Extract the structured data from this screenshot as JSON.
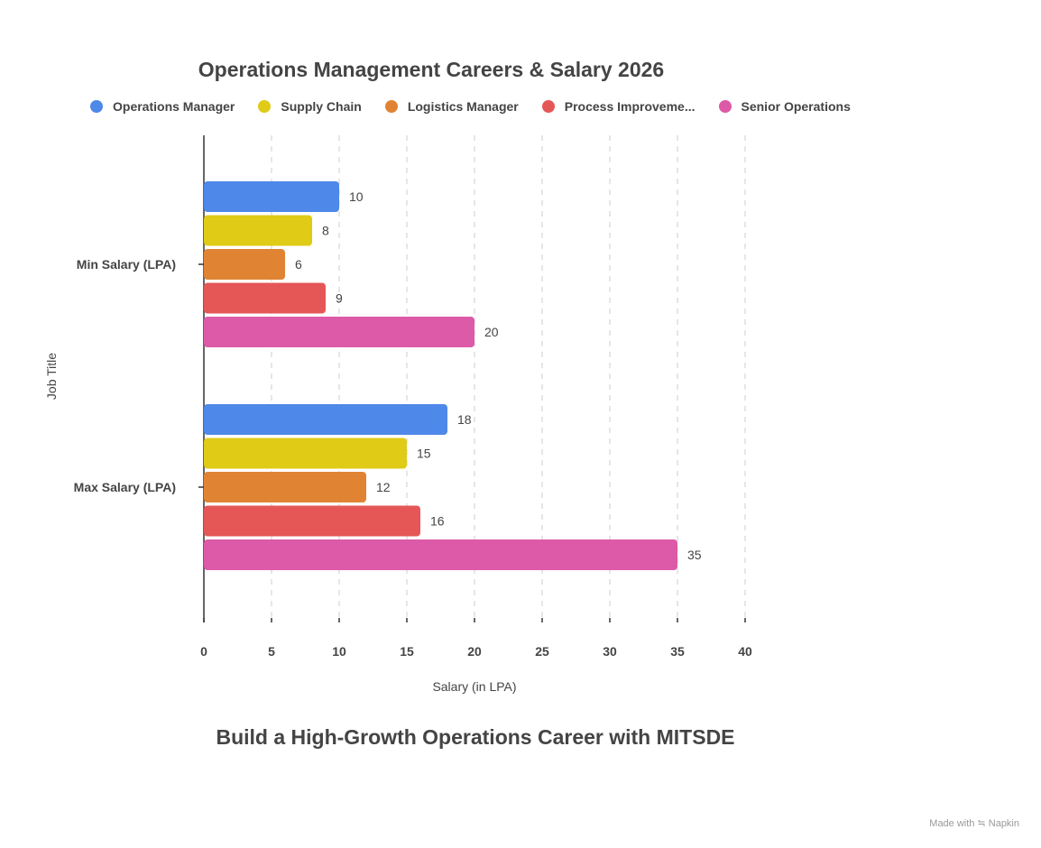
{
  "chart_data": {
    "type": "bar",
    "orientation": "horizontal",
    "title": "Operations Management Careers & Salary 2026",
    "subtitle": "Build a High-Growth Operations Career with MITSDE",
    "xlabel": "Salary (in LPA)",
    "ylabel": "Job Title",
    "xlim": [
      0,
      40
    ],
    "xticks": [
      0,
      5,
      10,
      15,
      20,
      25,
      30,
      35,
      40
    ],
    "grid": "vertical dashed",
    "legend_position": "top",
    "categories": [
      "Min Salary (LPA)",
      "Max Salary (LPA)"
    ],
    "series": [
      {
        "name": "Operations Manager",
        "color": "#4e88e8",
        "values": [
          10,
          18
        ]
      },
      {
        "name": "Supply Chain",
        "color": "#e0cb17",
        "values": [
          8,
          15
        ]
      },
      {
        "name": "Logistics Manager",
        "color": "#e08434",
        "values": [
          6,
          12
        ]
      },
      {
        "name": "Process Improveme...",
        "color": "#e55757",
        "values": [
          9,
          16
        ]
      },
      {
        "name": "Senior Operations",
        "color": "#dc5aa8",
        "values": [
          20,
          35
        ]
      }
    ]
  },
  "credit": "Made with ≒ Napkin"
}
